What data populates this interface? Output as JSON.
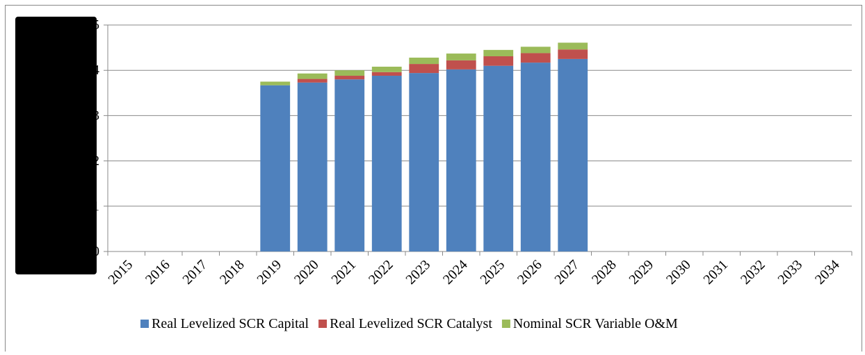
{
  "chart_data": {
    "type": "stacked_bar",
    "categories": [
      "2015",
      "2016",
      "2017",
      "2018",
      "2019",
      "2020",
      "2021",
      "2022",
      "2023",
      "2024",
      "2025",
      "2026",
      "2027",
      "2028",
      "2029",
      "2030",
      "2031",
      "2032",
      "2033",
      "2034"
    ],
    "series": [
      {
        "name": "Real Levelized SCR Capital",
        "color": "#4f81bd",
        "values": [
          null,
          null,
          null,
          null,
          3.67,
          3.73,
          3.8,
          3.88,
          3.94,
          4.02,
          4.1,
          4.17,
          4.25,
          null,
          null,
          null,
          null,
          null,
          null,
          null
        ]
      },
      {
        "name": "Real Levelized SCR Catalyst",
        "color": "#c0504d",
        "values": [
          null,
          null,
          null,
          null,
          0,
          0.08,
          0.08,
          0.08,
          0.2,
          0.2,
          0.21,
          0.21,
          0.21,
          null,
          null,
          null,
          null,
          null,
          null,
          null
        ]
      },
      {
        "name": "Nominal SCR Variable O&M",
        "color": "#9bbb59",
        "values": [
          null,
          null,
          null,
          null,
          0.08,
          0.12,
          0.12,
          0.12,
          0.14,
          0.15,
          0.14,
          0.14,
          0.15,
          null,
          null,
          null,
          null,
          null,
          null,
          null
        ]
      }
    ],
    "ylim": [
      0,
      5
    ],
    "yticks": [
      0,
      1,
      2,
      3,
      4,
      5
    ],
    "grid": true,
    "legend": "bottom"
  }
}
